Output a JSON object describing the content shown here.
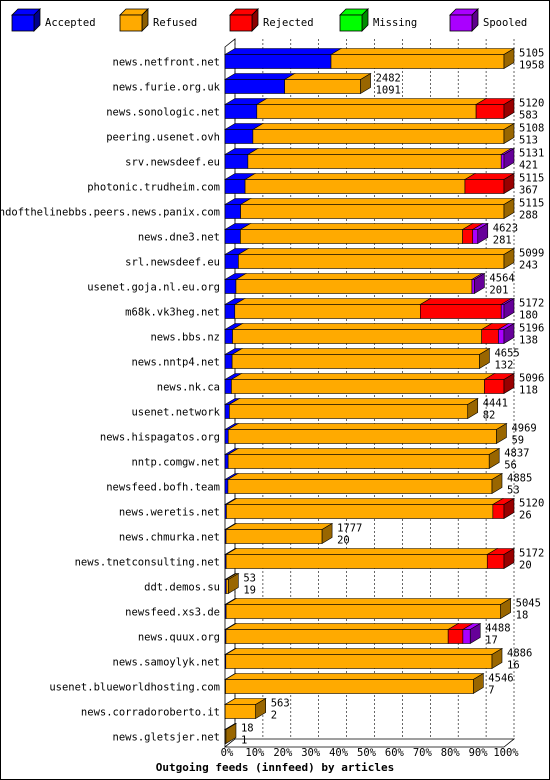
{
  "chart_data": {
    "type": "bar",
    "orientation": "horizontal",
    "stacked": true,
    "title": "Outgoing feeds (innfeed) by articles",
    "x_ticks": [
      "0%",
      "10%",
      "20%",
      "30%",
      "40%",
      "50%",
      "60%",
      "70%",
      "80%",
      "90%",
      "100%"
    ],
    "legend_position": "top",
    "legend": [
      {
        "name": "Accepted",
        "color": "#0000ff"
      },
      {
        "name": "Refused",
        "color": "#ffaa00"
      },
      {
        "name": "Rejected",
        "color": "#ff0000"
      },
      {
        "name": "Missing",
        "color": "#00ff00"
      },
      {
        "name": "Spooled",
        "color": "#aa00ff"
      }
    ],
    "rows": [
      {
        "name": "news.netfront.net",
        "total": "5105",
        "accepted_count": "1958",
        "accepted": 0.38,
        "refused": 0.62,
        "rejected": 0.0,
        "missing": 0.0,
        "spooled": 0.0,
        "scale": 1.0
      },
      {
        "name": "news.furie.org.uk",
        "total": "2482",
        "accepted_count": "1091",
        "accepted": 0.44,
        "refused": 0.56,
        "rejected": 0.0,
        "missing": 0.0,
        "spooled": 0.0,
        "scale": 0.486
      },
      {
        "name": "news.sonologic.net",
        "total": "5120",
        "accepted_count": "583",
        "accepted": 0.114,
        "refused": 0.786,
        "rejected": 0.1,
        "missing": 0.0,
        "spooled": 0.0,
        "scale": 1.0
      },
      {
        "name": "peering.usenet.ovh",
        "total": "5108",
        "accepted_count": "513",
        "accepted": 0.1,
        "refused": 0.9,
        "rejected": 0.0,
        "missing": 0.0,
        "spooled": 0.0,
        "scale": 1.0
      },
      {
        "name": "srv.newsdeef.eu",
        "total": "5131",
        "accepted_count": "421",
        "accepted": 0.082,
        "refused": 0.908,
        "rejected": 0.0,
        "missing": 0.0,
        "spooled": 0.01,
        "scale": 1.0
      },
      {
        "name": "photonic.trudheim.com",
        "total": "5115",
        "accepted_count": "367",
        "accepted": 0.072,
        "refused": 0.788,
        "rejected": 0.14,
        "missing": 0.0,
        "spooled": 0.0,
        "scale": 1.0
      },
      {
        "name": "endofthelinebbs.peers.news.panix.com",
        "total": "5115",
        "accepted_count": "288",
        "accepted": 0.056,
        "refused": 0.944,
        "rejected": 0.0,
        "missing": 0.0,
        "spooled": 0.0,
        "scale": 1.0
      },
      {
        "name": "news.dne3.net",
        "total": "4623",
        "accepted_count": "281",
        "accepted": 0.061,
        "refused": 0.879,
        "rejected": 0.04,
        "missing": 0.0,
        "spooled": 0.02,
        "scale": 0.906
      },
      {
        "name": "srl.newsdeef.eu",
        "total": "5099",
        "accepted_count": "243",
        "accepted": 0.048,
        "refused": 0.952,
        "rejected": 0.0,
        "missing": 0.0,
        "spooled": 0.0,
        "scale": 1.0
      },
      {
        "name": "usenet.goja.nl.eu.org",
        "total": "4564",
        "accepted_count": "201",
        "accepted": 0.044,
        "refused": 0.946,
        "rejected": 0.0,
        "missing": 0.0,
        "spooled": 0.01,
        "scale": 0.894
      },
      {
        "name": "m68k.vk3heg.net",
        "total": "5172",
        "accepted_count": "180",
        "accepted": 0.035,
        "refused": 0.665,
        "rejected": 0.29,
        "missing": 0.0,
        "spooled": 0.01,
        "scale": 1.0
      },
      {
        "name": "news.bbs.nz",
        "total": "5196",
        "accepted_count": "138",
        "accepted": 0.027,
        "refused": 0.893,
        "rejected": 0.06,
        "missing": 0.0,
        "spooled": 0.02,
        "scale": 1.0
      },
      {
        "name": "news.nntp4.net",
        "total": "4655",
        "accepted_count": "132",
        "accepted": 0.028,
        "refused": 0.972,
        "rejected": 0.0,
        "missing": 0.0,
        "spooled": 0.0,
        "scale": 0.912
      },
      {
        "name": "news.nk.ca",
        "total": "5096",
        "accepted_count": "118",
        "accepted": 0.023,
        "refused": 0.907,
        "rejected": 0.07,
        "missing": 0.0,
        "spooled": 0.0,
        "scale": 1.0
      },
      {
        "name": "usenet.network",
        "total": "4441",
        "accepted_count": "82",
        "accepted": 0.018,
        "refused": 0.982,
        "rejected": 0.0,
        "missing": 0.0,
        "spooled": 0.0,
        "scale": 0.87
      },
      {
        "name": "news.hispagatos.org",
        "total": "4969",
        "accepted_count": "59",
        "accepted": 0.012,
        "refused": 0.988,
        "rejected": 0.0,
        "missing": 0.0,
        "spooled": 0.0,
        "scale": 0.973
      },
      {
        "name": "nntp.comgw.net",
        "total": "4837",
        "accepted_count": "56",
        "accepted": 0.012,
        "refused": 0.988,
        "rejected": 0.0,
        "missing": 0.0,
        "spooled": 0.0,
        "scale": 0.947
      },
      {
        "name": "newsfeed.bofh.team",
        "total": "4885",
        "accepted_count": "53",
        "accepted": 0.011,
        "refused": 0.989,
        "rejected": 0.0,
        "missing": 0.0,
        "spooled": 0.0,
        "scale": 0.957
      },
      {
        "name": "news.weretis.net",
        "total": "5120",
        "accepted_count": "26",
        "accepted": 0.005,
        "refused": 0.955,
        "rejected": 0.04,
        "missing": 0.0,
        "spooled": 0.0,
        "scale": 1.0
      },
      {
        "name": "news.chmurka.net",
        "total": "1777",
        "accepted_count": "20",
        "accepted": 0.011,
        "refused": 0.989,
        "rejected": 0.0,
        "missing": 0.0,
        "spooled": 0.0,
        "scale": 0.348
      },
      {
        "name": "news.tnetconsulting.net",
        "total": "5172",
        "accepted_count": "20",
        "accepted": 0.004,
        "refused": 0.936,
        "rejected": 0.06,
        "missing": 0.0,
        "spooled": 0.0,
        "scale": 1.0
      },
      {
        "name": "ddt.demos.su",
        "total": "53",
        "accepted_count": "19",
        "accepted": 0.36,
        "refused": 0.64,
        "rejected": 0.0,
        "missing": 0.0,
        "spooled": 0.0,
        "scale": 0.012
      },
      {
        "name": "newsfeed.xs3.de",
        "total": "5045",
        "accepted_count": "18",
        "accepted": 0.004,
        "refused": 0.996,
        "rejected": 0.0,
        "missing": 0.0,
        "spooled": 0.0,
        "scale": 0.988
      },
      {
        "name": "news.quux.org",
        "total": "4488",
        "accepted_count": "17",
        "accepted": 0.004,
        "refused": 0.906,
        "rejected": 0.06,
        "missing": 0.0,
        "spooled": 0.03,
        "scale": 0.879
      },
      {
        "name": "news.samoylyk.net",
        "total": "4886",
        "accepted_count": "16",
        "accepted": 0.003,
        "refused": 0.997,
        "rejected": 0.0,
        "missing": 0.0,
        "spooled": 0.0,
        "scale": 0.957
      },
      {
        "name": "usenet.blueworldhosting.com",
        "total": "4546",
        "accepted_count": "7",
        "accepted": 0.002,
        "refused": 0.998,
        "rejected": 0.0,
        "missing": 0.0,
        "spooled": 0.0,
        "scale": 0.89
      },
      {
        "name": "news.corradoroberto.it",
        "total": "563",
        "accepted_count": "2",
        "accepted": 0.004,
        "refused": 0.996,
        "rejected": 0.0,
        "missing": 0.0,
        "spooled": 0.0,
        "scale": 0.11
      },
      {
        "name": "news.gletsjer.net",
        "total": "18",
        "accepted_count": "1",
        "accepted": 0.056,
        "refused": 0.944,
        "rejected": 0.0,
        "missing": 0.0,
        "spooled": 0.0,
        "scale": 0.0035
      }
    ]
  }
}
